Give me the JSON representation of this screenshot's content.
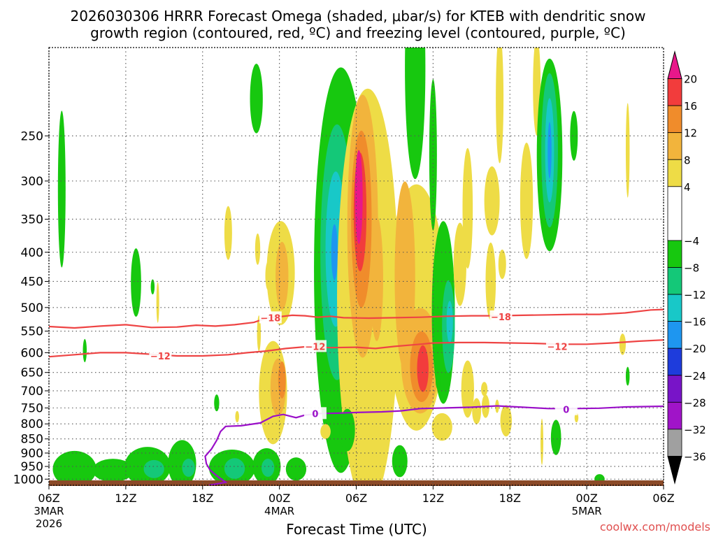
{
  "chart_data": {
    "type": "heatmap",
    "title_line1": "2026030306 HRRR Forecast Omega (shaded, μbar/s) for KTEB with dendritic snow",
    "title_line2": "growth region (contoured, red, ºC) and freezing level (contoured, purple, ºC)",
    "xlabel": "Forecast Time (UTC)",
    "ylabel": "",
    "credit": "coolwx.com/models",
    "x_range_hours": [
      0,
      48
    ],
    "y_range_hpa": [
      1025,
      175
    ],
    "x_ticks": [
      {
        "hour": 0,
        "label": "06Z",
        "sub1": "3MAR",
        "sub2": "2026"
      },
      {
        "hour": 6,
        "label": "12Z",
        "sub1": "",
        "sub2": ""
      },
      {
        "hour": 12,
        "label": "18Z",
        "sub1": "",
        "sub2": ""
      },
      {
        "hour": 18,
        "label": "00Z",
        "sub1": "4MAR",
        "sub2": ""
      },
      {
        "hour": 24,
        "label": "06Z",
        "sub1": "",
        "sub2": ""
      },
      {
        "hour": 30,
        "label": "12Z",
        "sub1": "",
        "sub2": ""
      },
      {
        "hour": 36,
        "label": "18Z",
        "sub1": "",
        "sub2": ""
      },
      {
        "hour": 42,
        "label": "00Z",
        "sub1": "5MAR",
        "sub2": ""
      },
      {
        "hour": 48,
        "label": "06Z",
        "sub1": "",
        "sub2": ""
      }
    ],
    "y_ticks": [
      {
        "p": 250,
        "label": "250"
      },
      {
        "p": 300,
        "label": "300"
      },
      {
        "p": 350,
        "label": "350"
      },
      {
        "p": 400,
        "label": "400"
      },
      {
        "p": 450,
        "label": "450"
      },
      {
        "p": 500,
        "label": "500"
      },
      {
        "p": 550,
        "label": "550"
      },
      {
        "p": 600,
        "label": "600"
      },
      {
        "p": 650,
        "label": "650"
      },
      {
        "p": 700,
        "label": "700"
      },
      {
        "p": 750,
        "label": "750"
      },
      {
        "p": 800,
        "label": "800"
      },
      {
        "p": 850,
        "label": "850"
      },
      {
        "p": 900,
        "label": "900"
      },
      {
        "p": 950,
        "label": "950"
      },
      {
        "p": 1000,
        "label": "1000"
      }
    ],
    "colorbar": {
      "levels": [
        {
          "from": 20,
          "to": 24,
          "color": "#e8178a"
        },
        {
          "from": 16,
          "to": 20,
          "color": "#f23c3c"
        },
        {
          "from": 12,
          "to": 16,
          "color": "#f08c2b"
        },
        {
          "from": 8,
          "to": 12,
          "color": "#f2b43c"
        },
        {
          "from": 4,
          "to": 8,
          "color": "#eedc46"
        },
        {
          "from": -4,
          "to": 4,
          "color": "#ffffff"
        },
        {
          "from": -8,
          "to": -4,
          "color": "#17c80f"
        },
        {
          "from": -12,
          "to": -8,
          "color": "#14c878"
        },
        {
          "from": -16,
          "to": -12,
          "color": "#18c8c8"
        },
        {
          "from": -20,
          "to": -16,
          "color": "#1e96f0"
        },
        {
          "from": -24,
          "to": -20,
          "color": "#1e3cdc"
        },
        {
          "from": -28,
          "to": -24,
          "color": "#7814c8"
        },
        {
          "from": -32,
          "to": -28,
          "color": "#a014c8"
        },
        {
          "from": -36,
          "to": -32,
          "color": "#a0a0a0"
        },
        {
          "from": -40,
          "to": -36,
          "color": "#000000"
        }
      ],
      "labels": [
        "20",
        "16",
        "12",
        "8",
        "4",
        "−4",
        "−8",
        "−12",
        "−16",
        "−20",
        "−24",
        "−28",
        "−32",
        "−36"
      ]
    },
    "contours": [
      {
        "name": "isotherm-minus-18",
        "label": "−18",
        "color": "#ee4444",
        "label_positions": [
          {
            "x": 17.3,
            "p": 521
          },
          {
            "x": 35.3,
            "p": 519
          }
        ],
        "points": [
          [
            0,
            540
          ],
          [
            2,
            543
          ],
          [
            4,
            539
          ],
          [
            6,
            536
          ],
          [
            8,
            542
          ],
          [
            10,
            541
          ],
          [
            11.5,
            537
          ],
          [
            13,
            539
          ],
          [
            14.5,
            536
          ],
          [
            16,
            531
          ],
          [
            17,
            522
          ],
          [
            18,
            519
          ],
          [
            19,
            516
          ],
          [
            20,
            517
          ],
          [
            21,
            520
          ],
          [
            22,
            518
          ],
          [
            23,
            521
          ],
          [
            25,
            522
          ],
          [
            27,
            521
          ],
          [
            29,
            520
          ],
          [
            31,
            518
          ],
          [
            33,
            517
          ],
          [
            35,
            517
          ],
          [
            37,
            516
          ],
          [
            39,
            515
          ],
          [
            41,
            514
          ],
          [
            43,
            514
          ],
          [
            45,
            511
          ],
          [
            47,
            505
          ],
          [
            48,
            504
          ]
        ]
      },
      {
        "name": "isotherm-minus-12",
        "label": "−12",
        "color": "#ee4444",
        "label_positions": [
          {
            "x": 8.7,
            "p": 608
          },
          {
            "x": 20.8,
            "p": 585
          },
          {
            "x": 39.7,
            "p": 585
          }
        ],
        "points": [
          [
            0,
            610
          ],
          [
            2,
            605
          ],
          [
            4,
            600
          ],
          [
            6,
            600
          ],
          [
            8,
            604
          ],
          [
            10,
            608
          ],
          [
            12,
            608
          ],
          [
            14,
            605
          ],
          [
            15.5,
            600
          ],
          [
            17,
            596
          ],
          [
            18.5,
            590
          ],
          [
            20,
            586
          ],
          [
            22,
            588
          ],
          [
            24,
            587
          ],
          [
            25.5,
            590
          ],
          [
            27,
            585
          ],
          [
            29,
            580
          ],
          [
            30,
            577
          ],
          [
            32,
            576
          ],
          [
            34,
            576
          ],
          [
            36,
            577
          ],
          [
            38,
            578
          ],
          [
            40,
            580
          ],
          [
            42,
            580
          ],
          [
            44,
            577
          ],
          [
            46,
            573
          ],
          [
            48,
            570
          ]
        ]
      },
      {
        "name": "freezing-level-0",
        "label": "0",
        "color": "#9a10c8",
        "label_positions": [
          {
            "x": 20.8,
            "p": 767
          },
          {
            "x": 40.4,
            "p": 755
          }
        ],
        "points": [
          [
            12.5,
            1025
          ],
          [
            13.8,
            1013
          ],
          [
            13.2,
            990
          ],
          [
            12.6,
            965
          ],
          [
            12.3,
            940
          ],
          [
            12.2,
            912
          ],
          [
            12.7,
            885
          ],
          [
            13.1,
            855
          ],
          [
            13.4,
            825
          ],
          [
            13.8,
            808
          ],
          [
            15,
            806
          ],
          [
            16.5,
            797
          ],
          [
            17.5,
            776
          ],
          [
            18.3,
            770
          ],
          [
            19.3,
            780
          ],
          [
            20,
            772
          ],
          [
            21.2,
            767
          ],
          [
            22.5,
            766
          ],
          [
            24,
            764
          ],
          [
            26,
            762
          ],
          [
            27.5,
            759
          ],
          [
            29,
            752
          ],
          [
            31,
            750
          ],
          [
            33,
            748
          ],
          [
            35,
            744
          ],
          [
            37,
            748
          ],
          [
            39,
            752
          ],
          [
            41,
            752
          ],
          [
            43,
            751
          ],
          [
            45,
            747
          ],
          [
            46.5,
            746
          ],
          [
            48,
            745
          ]
        ]
      }
    ],
    "blobs": [
      {
        "x": 1.0,
        "p": 310,
        "rx": 0.3,
        "ry": 95,
        "level": -8
      },
      {
        "x": 2.8,
        "p": 595,
        "rx": 0.15,
        "ry": 28,
        "level": -8
      },
      {
        "x": 6.8,
        "p": 452,
        "rx": 0.4,
        "ry": 62,
        "level": -8
      },
      {
        "x": 8.5,
        "p": 490,
        "rx": 0.1,
        "ry": 40,
        "level": 4
      },
      {
        "x": 8.1,
        "p": 460,
        "rx": 0.15,
        "ry": 14,
        "level": -8
      },
      {
        "x": 16.2,
        "p": 215,
        "rx": 0.5,
        "ry": 30,
        "level": -8
      },
      {
        "x": 14.0,
        "p": 370,
        "rx": 0.3,
        "ry": 40,
        "level": 4
      },
      {
        "x": 16.4,
        "p": 555,
        "rx": 0.15,
        "ry": 40,
        "level": 4
      },
      {
        "x": 17.1,
        "p": 440,
        "rx": 0.2,
        "ry": 25,
        "level": 4
      },
      {
        "x": 16.3,
        "p": 395,
        "rx": 0.2,
        "ry": 25,
        "level": 4
      },
      {
        "x": 13.1,
        "p": 735,
        "rx": 0.2,
        "ry": 25,
        "level": -8
      },
      {
        "x": 14.7,
        "p": 777,
        "rx": 0.15,
        "ry": 18,
        "level": 4
      },
      {
        "x": 18.1,
        "p": 435,
        "rx": 1.1,
        "ry": 90,
        "level": 4
      },
      {
        "x": 18.2,
        "p": 440,
        "rx": 0.5,
        "ry": 60,
        "level": 8
      },
      {
        "x": 17.5,
        "p": 705,
        "rx": 1.1,
        "ry": 145,
        "level": 4
      },
      {
        "x": 17.9,
        "p": 690,
        "rx": 0.6,
        "ry": 80,
        "level": 8
      },
      {
        "x": 18.2,
        "p": 670,
        "rx": 0.3,
        "ry": 50,
        "level": 12
      },
      {
        "x": 22.8,
        "p": 430,
        "rx": 2.1,
        "ry": 290,
        "level": -8
      },
      {
        "x": 22.5,
        "p": 400,
        "rx": 1.3,
        "ry": 190,
        "level": -12
      },
      {
        "x": 22.4,
        "p": 395,
        "rx": 0.8,
        "ry": 120,
        "level": -16
      },
      {
        "x": 22.3,
        "p": 400,
        "rx": 0.25,
        "ry": 45,
        "level": -20
      },
      {
        "x": 24.9,
        "p": 480,
        "rx": 2.4,
        "ry": 330,
        "level": 4
      },
      {
        "x": 24.5,
        "p": 360,
        "rx": 1.2,
        "ry": 175,
        "level": 8
      },
      {
        "x": 24.4,
        "p": 350,
        "rx": 0.8,
        "ry": 120,
        "level": 12
      },
      {
        "x": 24.3,
        "p": 340,
        "rx": 0.5,
        "ry": 80,
        "level": 16
      },
      {
        "x": 24.2,
        "p": 320,
        "rx": 0.3,
        "ry": 60,
        "level": 20
      },
      {
        "x": 25.6,
        "p": 445,
        "rx": 0.5,
        "ry": 110,
        "level": 8
      },
      {
        "x": 28.7,
        "p": 500,
        "rx": 2.3,
        "ry": 230,
        "level": 4
      },
      {
        "x": 27.8,
        "p": 440,
        "rx": 0.8,
        "ry": 160,
        "level": 8
      },
      {
        "x": 29.0,
        "p": 620,
        "rx": 1.5,
        "ry": 130,
        "level": 8
      },
      {
        "x": 29.1,
        "p": 635,
        "rx": 0.9,
        "ry": 90,
        "level": 12
      },
      {
        "x": 29.2,
        "p": 640,
        "rx": 0.45,
        "ry": 60,
        "level": 16
      },
      {
        "x": 30.8,
        "p": 510,
        "rx": 0.9,
        "ry": 180,
        "level": -8
      },
      {
        "x": 31.2,
        "p": 540,
        "rx": 0.5,
        "ry": 100,
        "level": -12
      },
      {
        "x": 31.3,
        "p": 530,
        "rx": 0.25,
        "ry": 45,
        "level": -16
      },
      {
        "x": 28.6,
        "p": 190,
        "rx": 0.8,
        "ry": 80,
        "level": -8
      },
      {
        "x": 30.0,
        "p": 270,
        "rx": 0.3,
        "ry": 80,
        "level": -8
      },
      {
        "x": 32.1,
        "p": 420,
        "rx": 0.5,
        "ry": 70,
        "level": 4
      },
      {
        "x": 34.5,
        "p": 450,
        "rx": 0.4,
        "ry": 70,
        "level": 4
      },
      {
        "x": 35.4,
        "p": 420,
        "rx": 0.3,
        "ry": 25,
        "level": 4
      },
      {
        "x": 32.7,
        "p": 335,
        "rx": 0.4,
        "ry": 80,
        "level": 4
      },
      {
        "x": 34.6,
        "p": 325,
        "rx": 0.6,
        "ry": 45,
        "level": 4
      },
      {
        "x": 35.2,
        "p": 215,
        "rx": 0.3,
        "ry": 55,
        "level": 4
      },
      {
        "x": 37.3,
        "p": 325,
        "rx": 0.5,
        "ry": 75,
        "level": 4
      },
      {
        "x": 38.1,
        "p": 205,
        "rx": 0.3,
        "ry": 40,
        "level": 4
      },
      {
        "x": 39.1,
        "p": 270,
        "rx": 1.0,
        "ry": 100,
        "level": -8
      },
      {
        "x": 39.1,
        "p": 265,
        "rx": 0.65,
        "ry": 80,
        "level": -12
      },
      {
        "x": 39.1,
        "p": 265,
        "rx": 0.35,
        "ry": 55,
        "level": -16
      },
      {
        "x": 39.1,
        "p": 265,
        "rx": 0.15,
        "ry": 30,
        "level": -20
      },
      {
        "x": 41.0,
        "p": 250,
        "rx": 0.3,
        "ry": 25,
        "level": -8
      },
      {
        "x": 45.2,
        "p": 265,
        "rx": 0.15,
        "ry": 50,
        "level": 4
      },
      {
        "x": 44.8,
        "p": 580,
        "rx": 0.25,
        "ry": 25,
        "level": 4
      },
      {
        "x": 45.2,
        "p": 660,
        "rx": 0.15,
        "ry": 25,
        "level": -8
      },
      {
        "x": 32.7,
        "p": 695,
        "rx": 0.5,
        "ry": 80,
        "level": 4
      },
      {
        "x": 33.4,
        "p": 760,
        "rx": 0.35,
        "ry": 40,
        "level": 4
      },
      {
        "x": 35.0,
        "p": 745,
        "rx": 0.15,
        "ry": 20,
        "level": 4
      },
      {
        "x": 34.1,
        "p": 745,
        "rx": 0.3,
        "ry": 35,
        "level": 4
      },
      {
        "x": 34.0,
        "p": 695,
        "rx": 0.25,
        "ry": 20,
        "level": 4
      },
      {
        "x": 41.2,
        "p": 780,
        "rx": 0.15,
        "ry": 15,
        "level": 4
      },
      {
        "x": 35.7,
        "p": 790,
        "rx": 0.45,
        "ry": 50,
        "level": 4
      },
      {
        "x": 38.5,
        "p": 860,
        "rx": 0.1,
        "ry": 80,
        "level": 4
      },
      {
        "x": 39.6,
        "p": 845,
        "rx": 0.4,
        "ry": 60,
        "level": -8
      },
      {
        "x": 43.0,
        "p": 1000,
        "rx": 0.4,
        "ry": 20,
        "level": -8
      },
      {
        "x": 21.6,
        "p": 825,
        "rx": 0.4,
        "ry": 25,
        "level": 4
      },
      {
        "x": 23.3,
        "p": 820,
        "rx": 0.6,
        "ry": 70,
        "level": -8
      },
      {
        "x": 24.5,
        "p": 815,
        "rx": 0.2,
        "ry": 45,
        "level": 4
      },
      {
        "x": 25.0,
        "p": 990,
        "rx": 0.15,
        "ry": 15,
        "level": 4
      },
      {
        "x": 27.4,
        "p": 930,
        "rx": 0.6,
        "ry": 60,
        "level": -8
      },
      {
        "x": 30.7,
        "p": 810,
        "rx": 0.8,
        "ry": 45,
        "level": 4
      },
      {
        "x": 30.4,
        "p": 675,
        "rx": 0.2,
        "ry": 20,
        "level": -8
      },
      {
        "x": 2.0,
        "p": 960,
        "rx": 1.7,
        "ry": 70,
        "level": -8
      },
      {
        "x": 5.0,
        "p": 965,
        "rx": 1.6,
        "ry": 45,
        "level": -8
      },
      {
        "x": 7.7,
        "p": 950,
        "rx": 1.8,
        "ry": 75,
        "level": -8
      },
      {
        "x": 8.2,
        "p": 960,
        "rx": 0.8,
        "ry": 35,
        "level": -12
      },
      {
        "x": 10.4,
        "p": 940,
        "rx": 1.1,
        "ry": 90,
        "level": -8
      },
      {
        "x": 10.9,
        "p": 955,
        "rx": 0.5,
        "ry": 35,
        "level": -12
      },
      {
        "x": 14.3,
        "p": 955,
        "rx": 1.8,
        "ry": 70,
        "level": -8
      },
      {
        "x": 14.5,
        "p": 958,
        "rx": 0.8,
        "ry": 40,
        "level": -12
      },
      {
        "x": 17.0,
        "p": 950,
        "rx": 1.1,
        "ry": 70,
        "level": -8
      },
      {
        "x": 17.1,
        "p": 955,
        "rx": 0.5,
        "ry": 35,
        "level": -12
      },
      {
        "x": 19.3,
        "p": 960,
        "rx": 0.8,
        "ry": 45,
        "level": -8
      },
      {
        "x": 10.0,
        "p": 900,
        "rx": 0.35,
        "ry": 20,
        "level": -8
      }
    ]
  }
}
